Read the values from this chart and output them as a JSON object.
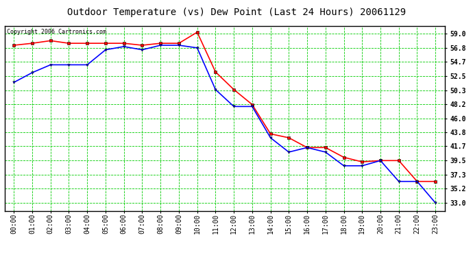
{
  "title": "Outdoor Temperature (vs) Dew Point (Last 24 Hours) 20061129",
  "copyright_text": "Copyright 2006 Cartronics.com",
  "x_labels": [
    "00:00",
    "01:00",
    "02:00",
    "03:00",
    "04:00",
    "05:00",
    "06:00",
    "07:00",
    "08:00",
    "09:00",
    "10:00",
    "11:00",
    "12:00",
    "13:00",
    "14:00",
    "15:00",
    "16:00",
    "17:00",
    "18:00",
    "19:00",
    "20:00",
    "21:00",
    "22:00",
    "23:00"
  ],
  "temp_data": [
    57.2,
    57.5,
    57.9,
    57.5,
    57.5,
    57.5,
    57.5,
    57.2,
    57.5,
    57.5,
    59.2,
    53.1,
    50.4,
    48.1,
    43.6,
    43.0,
    41.5,
    41.5,
    40.0,
    39.3,
    39.5,
    39.5,
    36.3,
    36.3
  ],
  "dew_data": [
    51.5,
    53.0,
    54.2,
    54.2,
    54.2,
    56.5,
    57.0,
    56.5,
    57.2,
    57.2,
    56.8,
    50.4,
    47.8,
    47.8,
    43.0,
    40.8,
    41.5,
    40.8,
    38.7,
    38.7,
    39.5,
    36.3,
    36.3,
    33.0
  ],
  "temp_color": "#ff0000",
  "dew_color": "#0000ff",
  "grid_color": "#00cc00",
  "bg_color": "#ffffff",
  "plot_bg_color": "#ffffff",
  "y_ticks": [
    33.0,
    35.2,
    37.3,
    39.5,
    41.7,
    43.8,
    46.0,
    48.2,
    50.3,
    52.5,
    54.7,
    56.8,
    59.0
  ],
  "y_min": 31.8,
  "y_max": 60.2,
  "title_fontsize": 10,
  "tick_fontsize": 7,
  "copyright_fontsize": 6,
  "line_width": 1.2,
  "marker_size": 2.5
}
